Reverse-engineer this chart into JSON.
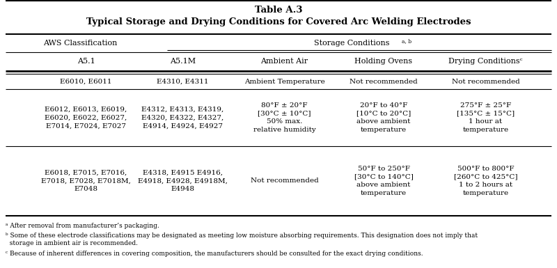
{
  "title_line1": "Table A.3",
  "title_line2": "Typical Storage and Drying Conditions for Covered Arc Welding Electrodes",
  "span_aws": "AWS Classification",
  "span_storage": "Storage Conditions",
  "span_storage_super": "a, b",
  "col_headers": [
    "A5.1",
    "A5.1M",
    "Ambient Air",
    "Holding Ovens",
    "Drying Conditionsᶜ"
  ],
  "rows": [
    [
      "E6010, E6011",
      "E4310, E4311",
      "Ambient Temperature",
      "Not recommended",
      "Not recommended"
    ],
    [
      "E6012, E6013, E6019,\nE6020, E6022, E6027,\nE7014, E7024, E7027",
      "E4312, E4313, E4319,\nE4320, E4322, E4327,\nE4914, E4924, E4927",
      "80°F ± 20°F\n[30°C ± 10°C]\n50% max.\nrelative humidity",
      "20°F to 40°F\n[10°C to 20°C]\nabove ambient\ntemperature",
      "275°F ± 25°F\n[135°C ± 15°C]\n1 hour at\ntemperature"
    ],
    [
      "E6018, E7015, E7016,\nE7018, E7028, E7018M,\nE7048",
      "E4318, E4915 E4916,\nE4918, E4928, E4918M,\nE4948",
      "Not recommended",
      "50°F to 250°F\n[30°C to 140°C]\nabove ambient\ntemperature",
      "500°F to 800°F\n[260°C to 425°C]\n1 to 2 hours at\ntemperature"
    ]
  ],
  "footnote_a": "ᵃ After removal from manufacturer’s packaging.",
  "footnote_b": "ᵇ Some of these electrode classifications may be designated as meeting low moisture absorbing requirements. This designation does not imply that\n  storage in ambient air is recommended.",
  "footnote_c": "ᶜ Because of inherent differences in covering composition, the manufacturers should be consulted for the exact drying conditions.",
  "bg_color": "#ffffff",
  "text_color": "#000000"
}
